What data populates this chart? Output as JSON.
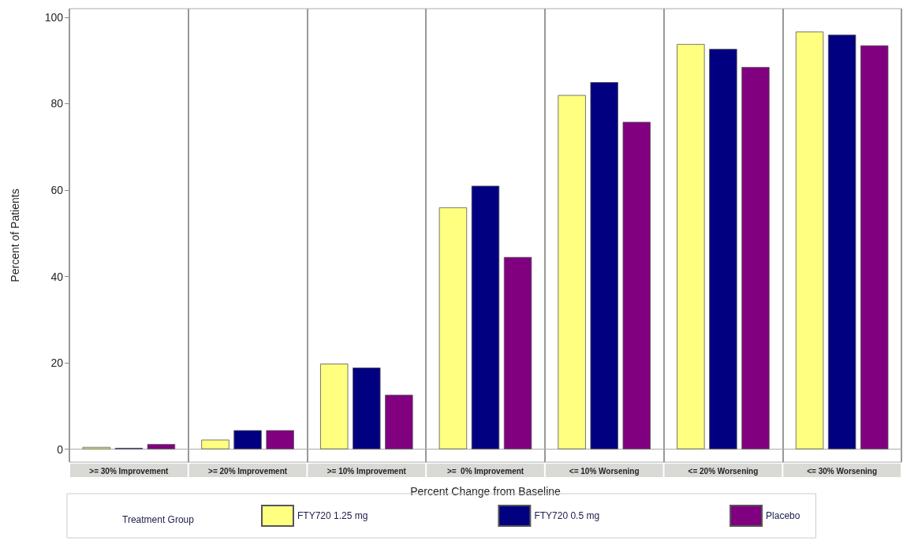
{
  "chart_data": {
    "type": "bar",
    "xlabel": "Percent Change from Baseline",
    "ylabel": "Percent of Patients",
    "legend_title": "Treatment Group",
    "categories": [
      ">= 30% Improvement",
      ">= 20% Improvement",
      ">= 10% Improvement",
      ">=  0% Improvement",
      "<= 10% Worsening",
      "<= 20% Worsening",
      "<= 30% Worsening"
    ],
    "series": [
      {
        "name": "FTY720 1.25 mg",
        "color": "#ffff80",
        "values": [
          0.5,
          2.2,
          19.8,
          56,
          82,
          93.8,
          96.7
        ]
      },
      {
        "name": "FTY720 0.5 mg",
        "color": "#000080",
        "values": [
          0.3,
          4.4,
          18.9,
          61,
          85,
          92.7,
          96
        ]
      },
      {
        "name": "Placebo",
        "color": "#800080",
        "values": [
          1.2,
          4.4,
          12.6,
          44.5,
          75.8,
          88.5,
          93.5
        ]
      }
    ],
    "ylim": [
      -3,
      102
    ],
    "yticks": [
      0,
      20,
      40,
      60,
      80,
      100
    ],
    "grid": "x",
    "legend": "bottom"
  }
}
